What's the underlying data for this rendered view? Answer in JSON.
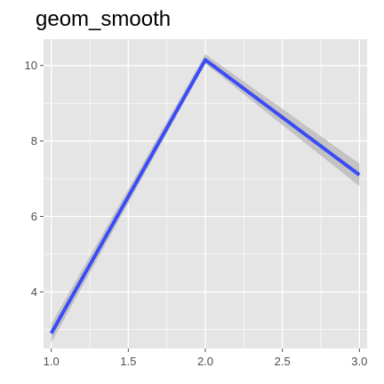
{
  "chart_data": {
    "type": "line",
    "title": "geom_smooth",
    "xlabel": "",
    "ylabel": "",
    "x": [
      1.0,
      2.0,
      3.0
    ],
    "series": [
      {
        "values": [
          2.9,
          10.15,
          7.1
        ],
        "ci_lower": [
          2.65,
          10.05,
          6.8
        ],
        "ci_upper": [
          3.15,
          10.3,
          7.4
        ]
      }
    ],
    "xlim": [
      0.95,
      3.05
    ],
    "ylim": [
      2.5,
      10.7
    ],
    "x_ticks": [
      {
        "value": 1.0,
        "label": "1.0"
      },
      {
        "value": 1.5,
        "label": "1.5"
      },
      {
        "value": 2.0,
        "label": "2.0"
      },
      {
        "value": 2.5,
        "label": "2.5"
      },
      {
        "value": 3.0,
        "label": "3.0"
      }
    ],
    "y_ticks": [
      {
        "value": 4,
        "label": "4"
      },
      {
        "value": 6,
        "label": "6"
      },
      {
        "value": 8,
        "label": "8"
      },
      {
        "value": 10,
        "label": "10"
      }
    ],
    "x_minor": [
      1.25,
      1.75,
      2.25,
      2.75
    ],
    "y_minor": [
      3,
      5,
      7,
      9
    ],
    "grid": true,
    "colors": {
      "panel": "#e5e5e5",
      "grid": "#ffffff",
      "line": "#3b4cf6",
      "ribbon": "#bfbfbf",
      "tick": "#4d4d4d"
    }
  }
}
